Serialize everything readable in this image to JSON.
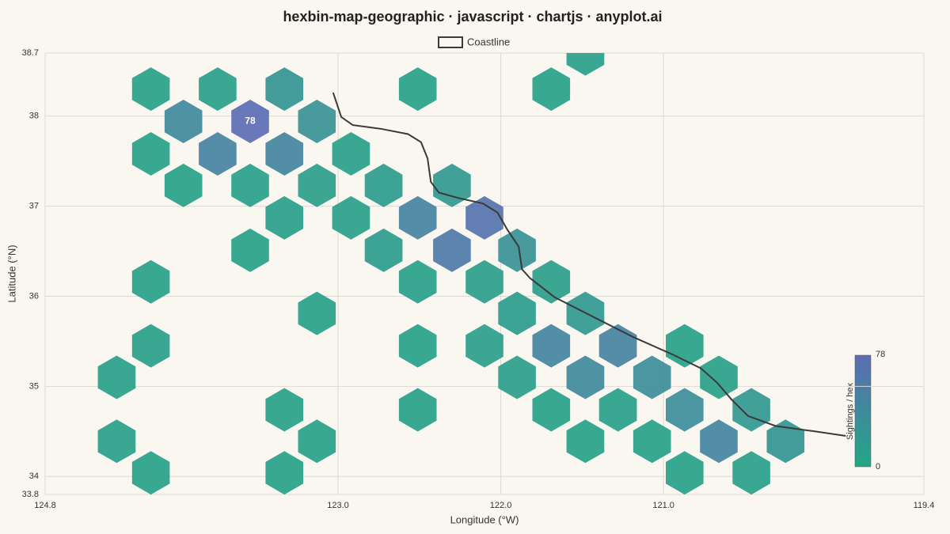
{
  "chart_data": {
    "type": "hexbin",
    "title": "hexbin-map-geographic · javascript · chartjs · anyplot.ai",
    "x_label": "Longitude (°W)",
    "y_label": "Latitude (°N)",
    "xlim": [
      124.8,
      119.4
    ],
    "xticks": [
      124.8,
      {
        "value": 123,
        "label": "123.0"
      },
      {
        "value": 122,
        "label": "122.0"
      },
      {
        "value": 121,
        "label": "121.0"
      },
      119.4
    ],
    "ylim": [
      33.8,
      38.7
    ],
    "yticks": [
      33.8,
      34,
      35,
      36,
      37,
      38,
      38.7
    ],
    "grid": true,
    "lon": [
      121.48,
      124.15,
      123.74,
      123.33,
      122.51,
      121.69,
      123.95,
      123.54,
      123.13,
      124.15,
      123.74,
      123.33,
      122.92,
      123.95,
      123.54,
      123.13,
      122.72,
      122.3,
      123.33,
      122.92,
      122.51,
      122.1,
      123.54,
      122.72,
      122.3,
      121.9,
      124.15,
      122.51,
      122.1,
      121.69,
      123.13,
      121.9,
      121.48,
      124.15,
      122.51,
      122.1,
      121.69,
      121.28,
      120.87,
      124.36,
      121.9,
      121.48,
      121.07,
      120.66,
      123.33,
      122.51,
      121.69,
      121.28,
      120.87,
      120.46,
      124.36,
      123.13,
      121.48,
      121.07,
      120.66,
      120.25,
      124.15,
      123.33,
      120.87,
      120.46
    ],
    "lat": [
      38.69,
      38.3,
      38.3,
      38.3,
      38.3,
      38.3,
      37.94,
      37.94,
      37.94,
      37.58,
      37.58,
      37.58,
      37.58,
      37.23,
      37.23,
      37.23,
      37.23,
      37.23,
      36.87,
      36.87,
      36.87,
      36.87,
      36.51,
      36.51,
      36.51,
      36.51,
      36.16,
      36.16,
      36.16,
      36.16,
      35.81,
      35.81,
      35.81,
      35.45,
      35.45,
      35.45,
      35.45,
      35.45,
      35.45,
      35.1,
      35.1,
      35.1,
      35.1,
      35.1,
      34.74,
      34.74,
      34.74,
      34.74,
      34.74,
      34.74,
      34.39,
      34.39,
      34.39,
      34.39,
      34.39,
      34.39,
      34.04,
      34.04,
      34.04,
      34.04
    ],
    "counts": [
      10,
      8,
      10,
      25,
      8,
      8,
      40,
      78,
      30,
      8,
      50,
      45,
      10,
      8,
      10,
      12,
      15,
      20,
      10,
      10,
      50,
      70,
      8,
      15,
      60,
      30,
      8,
      10,
      12,
      12,
      8,
      15,
      20,
      10,
      8,
      12,
      45,
      50,
      8,
      10,
      12,
      40,
      35,
      10,
      8,
      8,
      8,
      10,
      35,
      20,
      10,
      8,
      8,
      8,
      45,
      25,
      8,
      8,
      8,
      10
    ],
    "colorscale": [
      "#22a784",
      "#5b6db3"
    ],
    "clim": [
      0,
      78
    ],
    "colorbar_label": "Sightings / hex",
    "coastline": {
      "name": "Coastline",
      "color": "#3a3a3a",
      "x": [
        123.03,
        122.98,
        122.91,
        122.74,
        122.57,
        122.49,
        122.45,
        122.43,
        122.38,
        122.26,
        122.11,
        122.02,
        121.96,
        121.89,
        121.87,
        121.82,
        121.67,
        121.43,
        121.19,
        120.94,
        120.77,
        120.67,
        120.58,
        120.48,
        120.31,
        120.07,
        119.88
      ],
      "y": [
        38.26,
        37.99,
        37.9,
        37.86,
        37.8,
        37.71,
        37.53,
        37.27,
        37.15,
        37.09,
        37.03,
        36.93,
        36.74,
        36.55,
        36.3,
        36.2,
        35.99,
        35.77,
        35.55,
        35.35,
        35.2,
        35.04,
        34.85,
        34.67,
        34.56,
        34.5,
        34.45
      ]
    },
    "legend": "top"
  }
}
